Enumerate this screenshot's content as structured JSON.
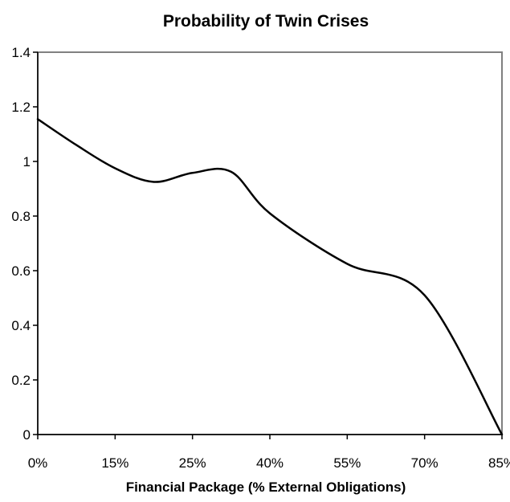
{
  "chart_data": {
    "type": "line",
    "title": "Probability of Twin Crises",
    "xlabel": "Financial Package (% External Obligations)",
    "ylabel": "",
    "categories": [
      "0%",
      "15%",
      "25%",
      "40%",
      "55%",
      "70%",
      "85%"
    ],
    "ylim": [
      0,
      1.4
    ],
    "yticks": [
      "0",
      "0.2",
      "0.4",
      "0.6",
      "0.8",
      "1",
      "1.2",
      "1.4"
    ],
    "grid": false,
    "legend": "none",
    "series": [
      {
        "name": "",
        "color": "#000000",
        "points": [
          {
            "x": 0.0,
            "y": 1.155
          },
          {
            "x": 0.5,
            "y": 1.06
          },
          {
            "x": 1.0,
            "y": 0.975
          },
          {
            "x": 1.5,
            "y": 0.925
          },
          {
            "x": 2.0,
            "y": 0.958
          },
          {
            "x": 2.5,
            "y": 0.962
          },
          {
            "x": 3.0,
            "y": 0.81
          },
          {
            "x": 4.0,
            "y": 0.625
          },
          {
            "x": 5.0,
            "y": 0.51
          },
          {
            "x": 6.0,
            "y": 0.0
          }
        ]
      }
    ]
  }
}
